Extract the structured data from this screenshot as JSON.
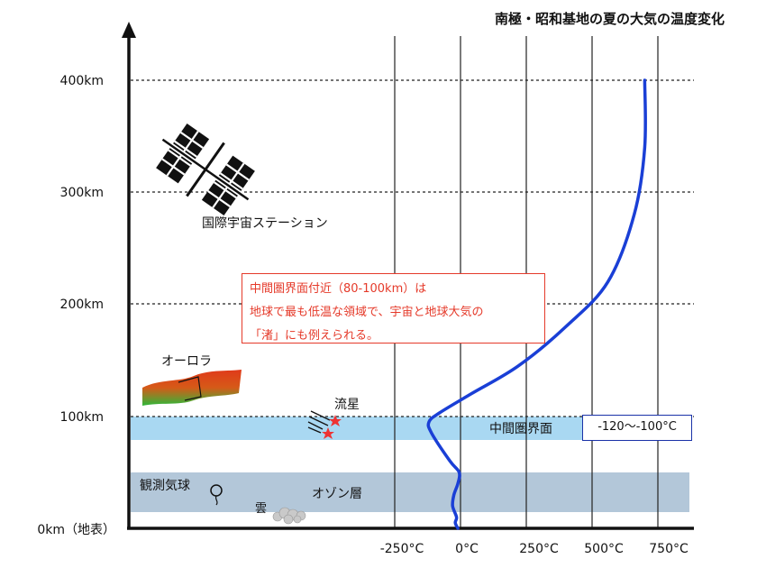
{
  "chart_data": {
    "type": "line",
    "title": "南極・昭和基地の夏の大気の温度変化",
    "y_ticks": [
      {
        "value": 0,
        "label": "0km（地表）"
      },
      {
        "value": 100,
        "label": "100km"
      },
      {
        "value": 200,
        "label": "200km"
      },
      {
        "value": 300,
        "label": "300km"
      },
      {
        "value": 400,
        "label": "400km"
      }
    ],
    "x_ticks": [
      {
        "value": -250,
        "label": "-250°C"
      },
      {
        "value": 0,
        "label": "0°C"
      },
      {
        "value": 250,
        "label": "250°C"
      },
      {
        "value": 500,
        "label": "500°C"
      },
      {
        "value": 750,
        "label": "750°C"
      }
    ],
    "series": [
      {
        "x": [
          -10,
          -20,
          -15,
          -30,
          -25,
          -10,
          -5,
          -40,
          -110,
          -120,
          -80,
          40,
          220,
          400,
          560,
          660,
          700,
          700
        ],
        "y": [
          0,
          5,
          10,
          20,
          30,
          40,
          50,
          60,
          85,
          95,
          103,
          120,
          145,
          180,
          220,
          280,
          340,
          400
        ]
      }
    ],
    "color": "#1a3fd6",
    "bands": [
      {
        "label": "中間圏界面",
        "y_range": [
          80,
          100
        ],
        "color": "#a9d8f2"
      },
      {
        "label": "オゾン層",
        "y_range": [
          12,
          52
        ],
        "color": "#b3c7d9"
      }
    ],
    "annotations": {
      "iss": "国際宇宙ステーション",
      "aurora": "オーロラ",
      "meteor": "流星",
      "balloon": "観測気球",
      "cloud": "雲",
      "mesopause_temp": "-120～-100°C",
      "note_lines": [
        "中間圏界面付近（80-100km）は",
        "地球で最も低温な領域で、宇宙と地球大気の",
        "「渚」にも例えられる。"
      ]
    },
    "ylim": [
      0,
      400
    ],
    "grid": true
  }
}
